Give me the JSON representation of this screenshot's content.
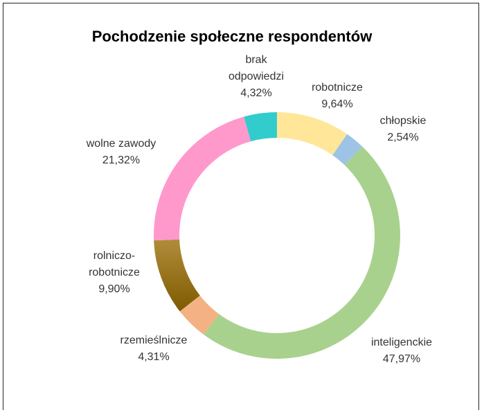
{
  "chart_data": {
    "type": "donut",
    "title": "Pochodzenie społeczne respondentów",
    "categories": [
      "robotnicze",
      "chłopskie",
      "inteligenckie",
      "rzemieślnicze",
      "rolniczo-robotnicze",
      "wolne zawody",
      "brak odpowiedzi"
    ],
    "values": [
      9.64,
      2.54,
      47.97,
      4.31,
      9.9,
      21.32,
      4.32
    ],
    "value_labels": [
      "9,64%",
      "2,54%",
      "47,97%",
      "4,31%",
      "9,90%",
      "21,32%",
      "4,32%"
    ],
    "colors": [
      "#ffe699",
      "#9dc3e6",
      "#a9d18e",
      "#f4b183",
      "#9c7414",
      "#ff99cc",
      "#33cccc"
    ]
  }
}
